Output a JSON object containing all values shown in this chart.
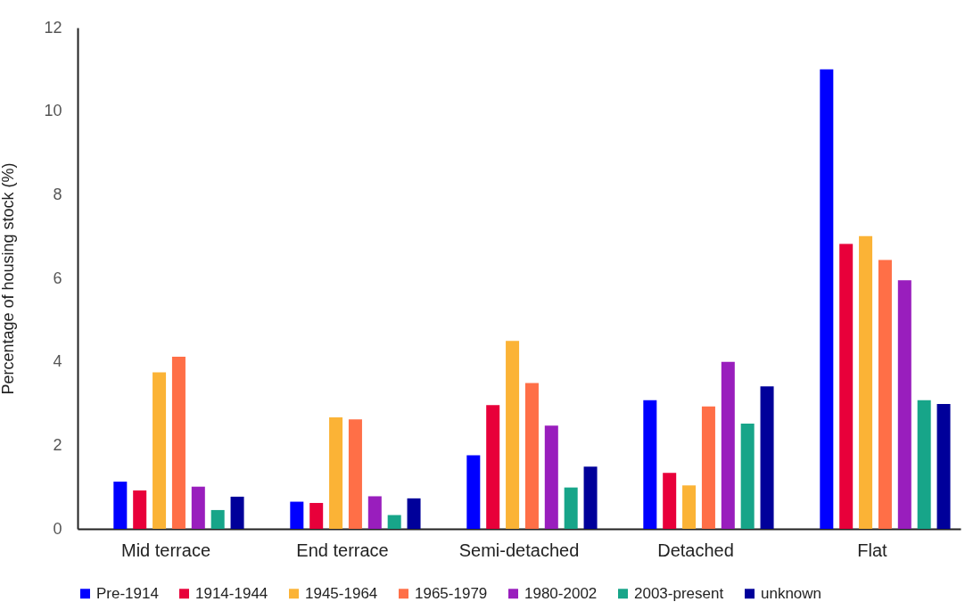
{
  "chart_data": {
    "type": "bar",
    "ylabel": "Percentage of housing stock (%)",
    "categories": [
      "Mid terrace",
      "End terrace",
      "Semi-detached",
      "Detached",
      "Flat"
    ],
    "series": [
      {
        "name": "Pre-1914",
        "color": "#0000ff",
        "values": [
          1.13,
          0.65,
          1.76,
          3.08,
          11.0
        ]
      },
      {
        "name": "1914-1944",
        "color": "#e8003a",
        "values": [
          0.92,
          0.62,
          2.96,
          1.34,
          6.82
        ]
      },
      {
        "name": "1945-1964",
        "color": "#fbb336",
        "values": [
          3.75,
          2.67,
          4.5,
          1.04,
          7.01
        ]
      },
      {
        "name": "1965-1979",
        "color": "#ff6f47",
        "values": [
          4.12,
          2.62,
          3.49,
          2.93,
          6.44
        ]
      },
      {
        "name": "1980-2002",
        "color": "#991ebd",
        "values": [
          1.01,
          0.78,
          2.47,
          4.0,
          5.95
        ]
      },
      {
        "name": "2003-present",
        "color": "#17a589",
        "values": [
          0.45,
          0.33,
          0.99,
          2.52,
          3.08
        ]
      },
      {
        "name": "unknown",
        "color": "#00009a",
        "values": [
          0.77,
          0.73,
          1.49,
          3.41,
          2.99
        ]
      }
    ],
    "ylim": [
      0,
      12
    ],
    "yticks": [
      0,
      2,
      4,
      6,
      8,
      10,
      12
    ],
    "grid": false,
    "legend": "bottom"
  }
}
